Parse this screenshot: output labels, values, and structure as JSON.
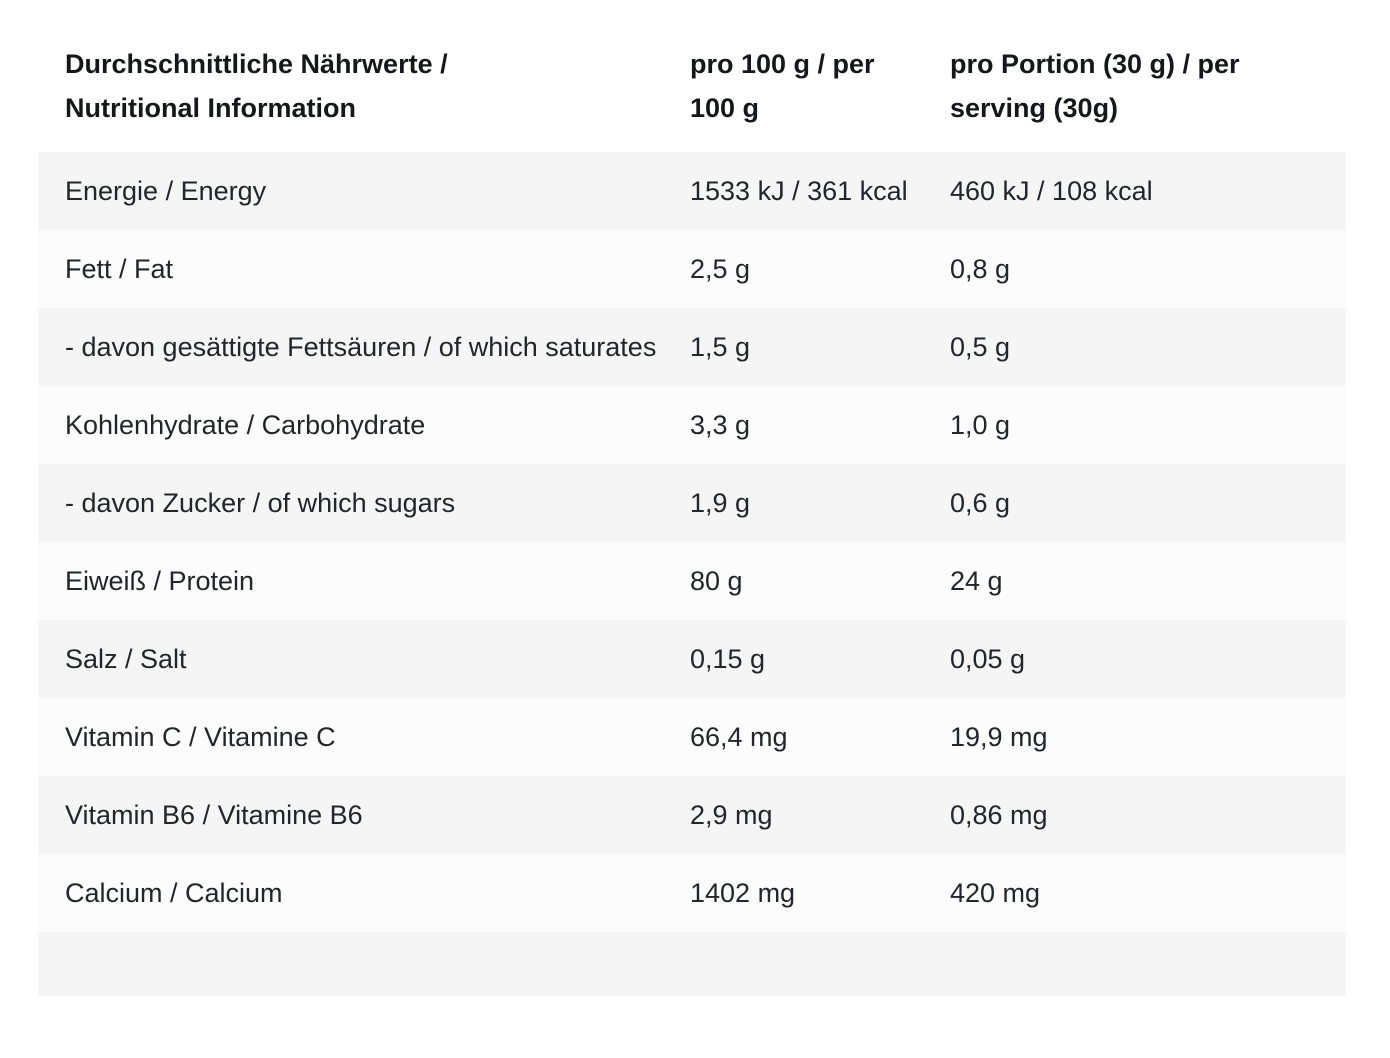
{
  "table": {
    "header": {
      "nutrient": "Durchschnittliche Nährwerte / Nutritional Information",
      "per_100g": "pro 100 g / per 100 g",
      "per_serving": "pro Portion (30 g) / per serving (30g)"
    },
    "rows": [
      {
        "label": "Energie / Energy",
        "per_100g": "1533 kJ / 361 kcal",
        "per_serving": "460 kJ / 108 kcal"
      },
      {
        "label": "Fett / Fat",
        "per_100g": "2,5 g",
        "per_serving": "0,8 g"
      },
      {
        "label": "- davon gesättigte Fettsäuren / of which saturates",
        "per_100g": "1,5 g",
        "per_serving": "0,5 g"
      },
      {
        "label": "Kohlenhydrate / Carbohydrate",
        "per_100g": "3,3 g",
        "per_serving": "1,0 g"
      },
      {
        "label": "- davon Zucker / of which sugars",
        "per_100g": "1,9 g",
        "per_serving": "0,6 g"
      },
      {
        "label": "Eiweiß / Protein",
        "per_100g": "80 g",
        "per_serving": "24 g"
      },
      {
        "label": "Salz / Salt",
        "per_100g": "0,15 g",
        "per_serving": "0,05 g"
      },
      {
        "label": "Vitamin C / Vitamine C",
        "per_100g": "66,4 mg",
        "per_serving": "19,9 mg"
      },
      {
        "label": "Vitamin B6 / Vitamine B6",
        "per_100g": "2,9 mg",
        "per_serving": "0,86 mg"
      },
      {
        "label": "Calcium / Calcium",
        "per_100g": "1402 mg",
        "per_serving": "420 mg"
      }
    ],
    "colors": {
      "stripe_odd": "#f5f5f6",
      "stripe_even": "#fcfcfc",
      "text": "#222529",
      "header_text": "#15171a"
    }
  }
}
